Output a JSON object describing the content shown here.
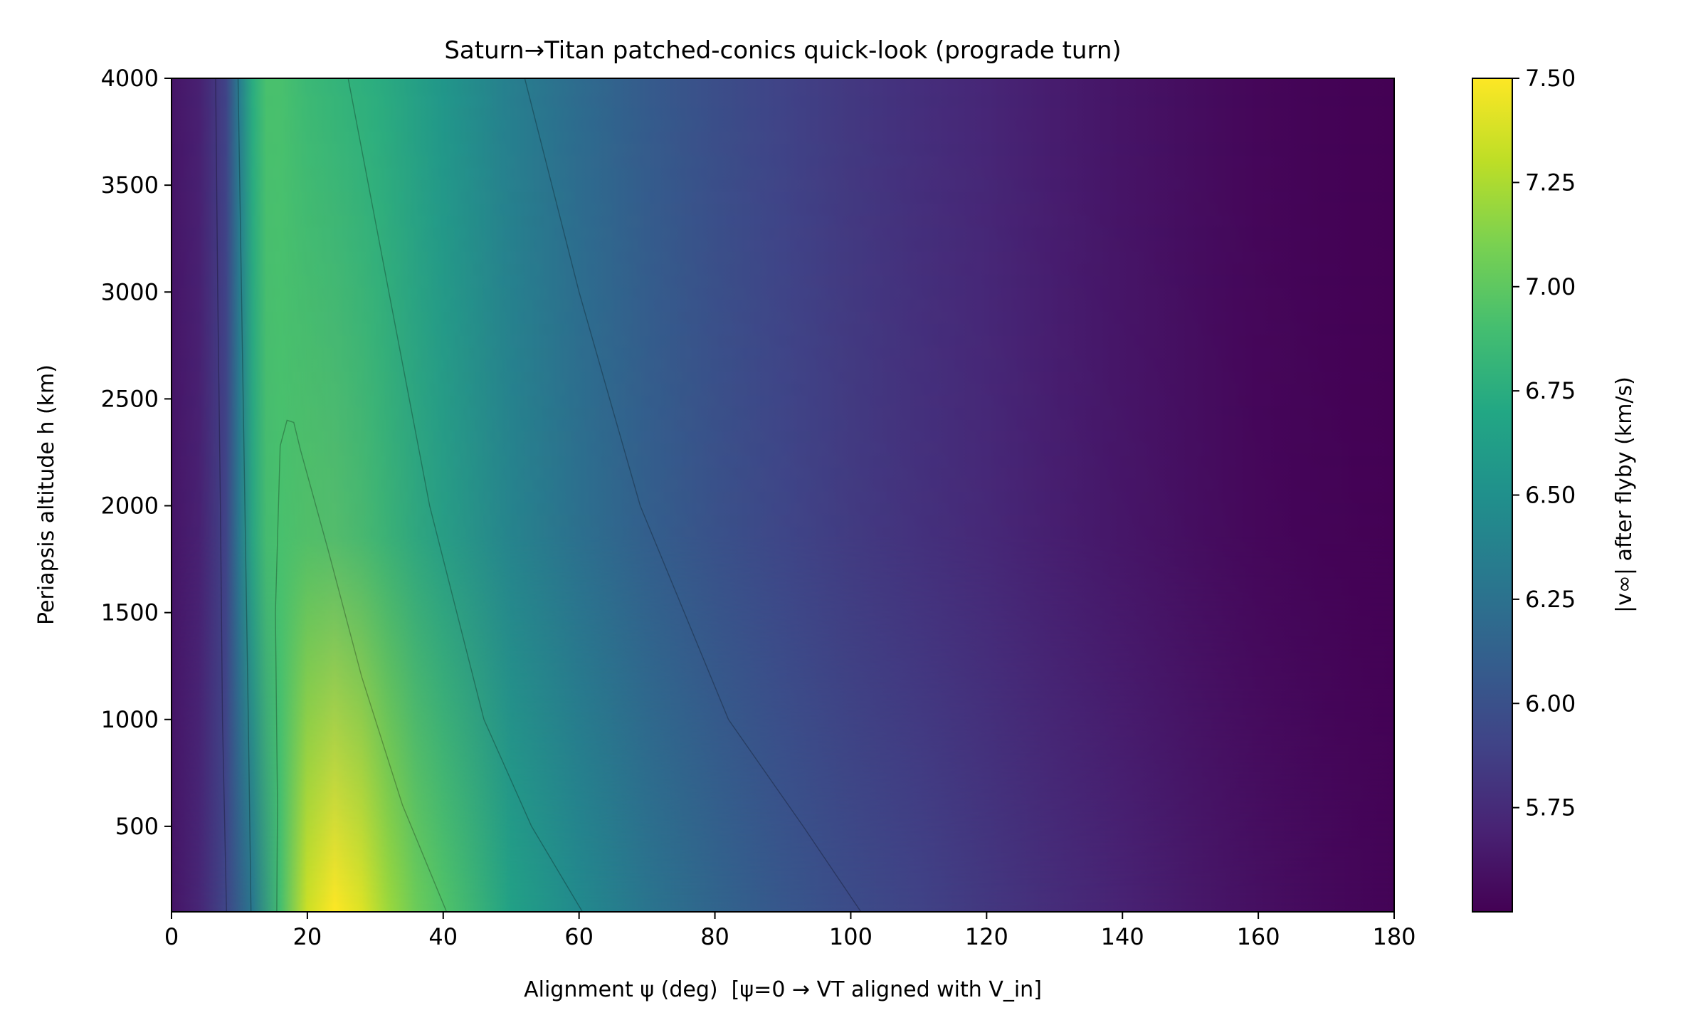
{
  "chart_data": {
    "type": "heatmap",
    "title": "Saturn→Titan patched-conics quick-look (prograde turn)",
    "xlabel": "Alignment ψ (deg)  [ψ=0 → VT aligned with V_in]",
    "ylabel": "Periapsis altitude h (km)",
    "colorbar_label": "|v∞| after flyby (km/s)",
    "colormap": "viridis",
    "xlim": [
      0,
      180
    ],
    "ylim": [
      100,
      4000
    ],
    "clim": [
      5.5,
      7.5
    ],
    "x_ticks": [
      0,
      20,
      40,
      60,
      80,
      100,
      120,
      140,
      160,
      180
    ],
    "y_ticks": [
      500,
      1000,
      1500,
      2000,
      2500,
      3000,
      3500,
      4000
    ],
    "colorbar_ticks": [
      "5.75",
      "6.00",
      "6.25",
      "6.50",
      "6.75",
      "7.00",
      "7.25",
      "7.50"
    ],
    "profile_low_altitude": {
      "x": [
        0,
        4,
        8,
        12,
        16,
        20,
        24,
        28,
        32,
        36,
        40,
        50,
        60,
        70,
        80,
        90,
        100,
        110,
        120,
        130,
        140,
        150,
        160,
        170,
        180
      ],
      "value": [
        5.62,
        5.72,
        5.92,
        6.3,
        6.9,
        7.35,
        7.5,
        7.4,
        7.2,
        7.05,
        6.95,
        6.65,
        6.45,
        6.28,
        6.15,
        6.05,
        5.97,
        5.9,
        5.83,
        5.76,
        5.7,
        5.64,
        5.59,
        5.55,
        5.52
      ]
    },
    "profile_high_altitude": {
      "x": [
        0,
        4,
        8,
        10,
        12,
        14,
        16,
        20,
        30,
        40,
        50,
        60,
        70,
        80,
        90,
        100,
        110,
        120,
        130,
        140,
        150,
        160,
        170,
        180
      ],
      "value": [
        5.62,
        5.68,
        5.9,
        6.35,
        6.75,
        6.92,
        6.92,
        6.85,
        6.75,
        6.55,
        6.35,
        6.2,
        6.08,
        5.98,
        5.9,
        5.83,
        5.77,
        5.72,
        5.66,
        5.61,
        5.57,
        5.53,
        5.51,
        5.5
      ]
    },
    "contours": [
      {
        "x": [
          6.5,
          6.8,
          7.2,
          7.5,
          7.9,
          8.1
        ],
        "y": [
          4000,
          3000,
          2000,
          1000,
          400,
          100
        ]
      },
      {
        "x": [
          9.8,
          10.3,
          10.8,
          11.3,
          11.7
        ],
        "y": [
          4000,
          3000,
          2000,
          1000,
          100
        ]
      },
      {
        "x": [
          15.5,
          15.6,
          15.3,
          16,
          17,
          18,
          19,
          23,
          28,
          34,
          40.5
        ],
        "y": [
          100,
          600,
          1500,
          2280,
          2400,
          2390,
          2260,
          1800,
          1200,
          600,
          100
        ]
      },
      {
        "x": [
          26,
          32,
          38,
          46,
          53,
          60.5
        ],
        "y": [
          4000,
          3000,
          2000,
          1000,
          500,
          100
        ]
      },
      {
        "x": [
          52,
          60,
          69,
          82,
          93,
          101.5
        ],
        "y": [
          4000,
          3000,
          2000,
          1000,
          500,
          100
        ]
      }
    ]
  }
}
